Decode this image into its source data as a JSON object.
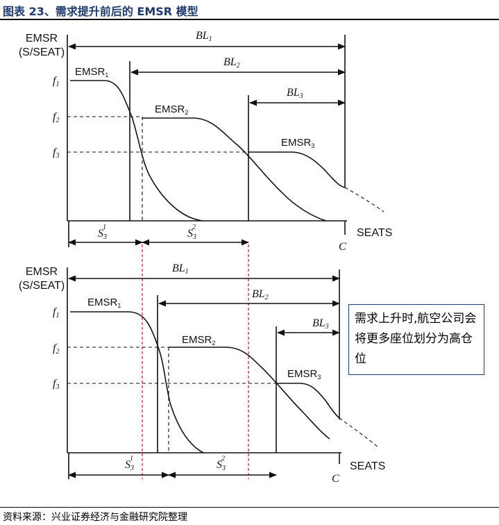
{
  "figure": {
    "title": "图表 23、需求提升前后的 EMSR 模型"
  },
  "source": {
    "text": "资料来源：兴业证券经济与金融研究院整理"
  },
  "callout": {
    "text": "需求上升时,航空公司会将更多座位划分为高仓位"
  },
  "top_panel": {
    "y_axis_label_1": "EMSR",
    "y_axis_label_2": "(S/SEAT)",
    "y_ticks": [
      "f1",
      "f2",
      "f3"
    ],
    "curves": [
      "EMSR1",
      "EMSR2",
      "EMSR3"
    ],
    "booking_limits": [
      "BL1",
      "BL2",
      "BL3"
    ],
    "protection_levels": [
      "S3^1",
      "S3^2"
    ],
    "x_axis_label": "SEATS",
    "capacity_label": "C"
  },
  "bottom_panel": {
    "y_axis_label_1": "EMSR",
    "y_axis_label_2": "(S/SEAT)",
    "y_ticks": [
      "f1",
      "f2",
      "f3"
    ],
    "curves": [
      "EMSR1",
      "EMSR2",
      "EMSR3"
    ],
    "booking_limits": [
      "BL1",
      "BL2",
      "BL3"
    ],
    "protection_levels": [
      "S3^1",
      "S3^2"
    ],
    "x_axis_label": "SEATS",
    "capacity_label": "C"
  },
  "colors": {
    "title": "#1f3a6e",
    "guide_red": "#d01818",
    "ink": "#111111"
  }
}
